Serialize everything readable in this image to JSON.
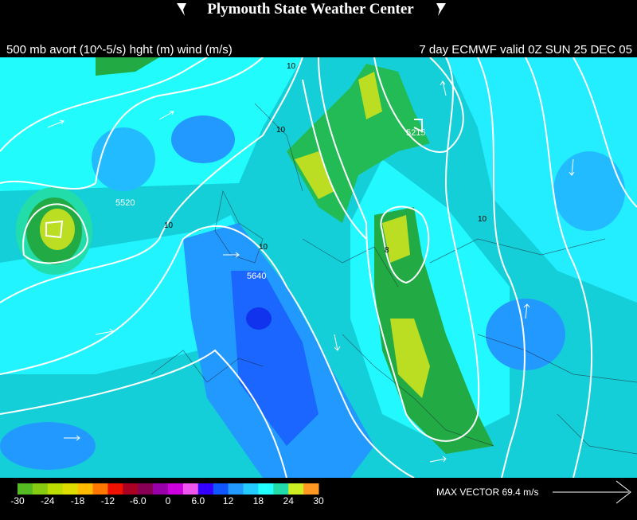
{
  "header": {
    "title": "Plymouth State Weather Center",
    "subtitle_left": "500 mb avort (10^-5/s) hght (m) wind (m/s)",
    "subtitle_right": "7 day ECMWF valid 0Z SUN 25 DEC 05"
  },
  "map": {
    "contour_labels": [
      {
        "text": "5520"
      },
      {
        "text": "5640"
      },
      {
        "text": "5215"
      },
      {
        "text": "10"
      },
      {
        "text": "10"
      },
      {
        "text": "10"
      },
      {
        "text": "10"
      },
      {
        "text": "10"
      },
      {
        "text": "8"
      }
    ]
  },
  "colorbar": {
    "colors": [
      "#55bb22",
      "#88cc11",
      "#bbdd00",
      "#dddd00",
      "#ffbb00",
      "#ff7700",
      "#ee1100",
      "#aa0022",
      "#880055",
      "#9900aa",
      "#cc00dd",
      "#ee55ee",
      "#3300ff",
      "#1155ff",
      "#2299ff",
      "#22ccff",
      "#22ffff",
      "#22ddaa",
      "#ccee22",
      "#ff9922"
    ],
    "tick_labels": [
      "-30",
      "-24",
      "-18",
      "-12",
      "-6.0",
      "0",
      "6.0",
      "12",
      "18",
      "24",
      "30"
    ]
  },
  "max_vector": "MAX VECTOR  69.4 m/s"
}
